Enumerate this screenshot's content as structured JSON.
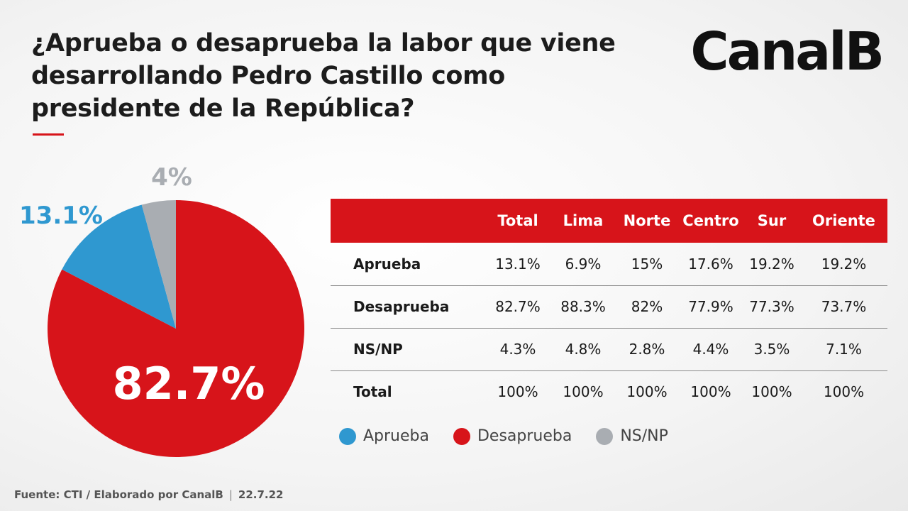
{
  "title": "¿Aprueba o desaprueba la labor que viene desarrollando Pedro Castillo como presidente de la República?",
  "logo": "CanalB",
  "colors": {
    "aprueba": "#2f98d0",
    "desaprueba": "#d7141a",
    "nsnp": "#a9adb2",
    "header": "#d7141a"
  },
  "chart_data": {
    "type": "pie",
    "slices": [
      {
        "name": "Desaprueba",
        "value": 82.7,
        "label": "82.7%",
        "color": "#d7141a"
      },
      {
        "name": "Aprueba",
        "value": 13.1,
        "label": "13.1%",
        "color": "#2f98d0"
      },
      {
        "name": "NS/NP",
        "value": 4.3,
        "label": "4%",
        "color": "#a9adb2"
      }
    ],
    "legend_position": "bottom"
  },
  "table": {
    "headers": [
      "",
      "Total",
      "Lima",
      "Norte",
      "Centro",
      "Sur",
      "Oriente"
    ],
    "rows": [
      {
        "label": "Aprueba",
        "values": [
          "13.1%",
          "6.9%",
          "15%",
          "17.6%",
          "19.2%",
          "19.2%"
        ]
      },
      {
        "label": "Desaprueba",
        "values": [
          "82.7%",
          "88.3%",
          "82%",
          "77.9%",
          "77.3%",
          "73.7%"
        ]
      },
      {
        "label": "NS/NP",
        "values": [
          "4.3%",
          "4.8%",
          "2.8%",
          "4.4%",
          "3.5%",
          "7.1%"
        ]
      },
      {
        "label": "Total",
        "values": [
          "100%",
          "100%",
          "100%",
          "100%",
          "100%",
          "100%"
        ]
      }
    ]
  },
  "legend": [
    {
      "label": "Aprueba",
      "color": "#2f98d0"
    },
    {
      "label": "Desaprueba",
      "color": "#d7141a"
    },
    {
      "label": "NS/NP",
      "color": "#a9adb2"
    }
  ],
  "footer": {
    "source": "Fuente: CTI / Elaborado por CanalB",
    "separator": "|",
    "date": "22.7.22"
  }
}
